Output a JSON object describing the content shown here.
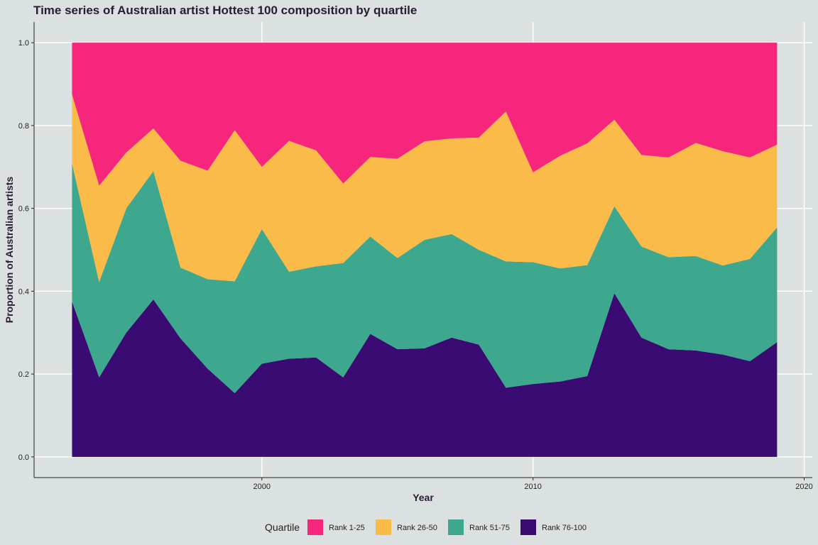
{
  "chart_data": {
    "type": "area",
    "title": "Time series of Australian artist Hottest 100 composition by quartile",
    "xlabel": "Year",
    "ylabel": "Proportion of Australian artists",
    "xlim": [
      1991.6,
      2020.3
    ],
    "ylim": [
      -0.05,
      1.05
    ],
    "x_ticks": [
      2000,
      2010,
      2020
    ],
    "y_ticks": [
      0.0,
      0.2,
      0.4,
      0.6,
      0.8,
      1.0
    ],
    "y_tick_labels": [
      "0.0",
      "0.2",
      "0.4",
      "0.6",
      "0.8",
      "1.0"
    ],
    "grid": true,
    "stacked": true,
    "legend_title": "Quartile",
    "legend_position": "bottom",
    "x": [
      1993,
      1994,
      1995,
      1996,
      1997,
      1998,
      1999,
      2000,
      2001,
      2002,
      2003,
      2004,
      2005,
      2006,
      2007,
      2008,
      2009,
      2010,
      2011,
      2012,
      2013,
      2014,
      2015,
      2016,
      2017,
      2018,
      2019
    ],
    "series": [
      {
        "name": "Rank 76-100",
        "color": "#3a0b72",
        "values": [
          0.375,
          0.192,
          0.3,
          0.38,
          0.286,
          0.213,
          0.154,
          0.225,
          0.237,
          0.24,
          0.192,
          0.297,
          0.26,
          0.262,
          0.288,
          0.271,
          0.167,
          0.176,
          0.182,
          0.195,
          0.395,
          0.288,
          0.26,
          0.257,
          0.247,
          0.231,
          0.277
        ]
      },
      {
        "name": "Rank 51-75",
        "color": "#3da88e",
        "values": [
          0.333,
          0.23,
          0.3,
          0.31,
          0.171,
          0.216,
          0.27,
          0.325,
          0.21,
          0.22,
          0.276,
          0.235,
          0.22,
          0.262,
          0.25,
          0.229,
          0.305,
          0.294,
          0.273,
          0.268,
          0.21,
          0.22,
          0.222,
          0.228,
          0.215,
          0.247,
          0.277
        ]
      },
      {
        "name": "Rank 26-50",
        "color": "#fbbb48",
        "values": [
          0.167,
          0.233,
          0.135,
          0.103,
          0.258,
          0.262,
          0.365,
          0.15,
          0.316,
          0.28,
          0.192,
          0.192,
          0.24,
          0.238,
          0.231,
          0.271,
          0.362,
          0.217,
          0.272,
          0.294,
          0.209,
          0.221,
          0.241,
          0.273,
          0.276,
          0.245,
          0.2
        ]
      },
      {
        "name": "Rank 1-25",
        "color": "#f5267b",
        "values": [
          0.125,
          0.345,
          0.265,
          0.207,
          0.285,
          0.309,
          0.211,
          0.3,
          0.237,
          0.26,
          0.34,
          0.276,
          0.28,
          0.238,
          0.231,
          0.229,
          0.166,
          0.313,
          0.273,
          0.243,
          0.186,
          0.271,
          0.277,
          0.242,
          0.262,
          0.277,
          0.246
        ]
      }
    ],
    "legend_order": [
      "Rank 1-25",
      "Rank 26-50",
      "Rank 51-75",
      "Rank 76-100"
    ]
  }
}
